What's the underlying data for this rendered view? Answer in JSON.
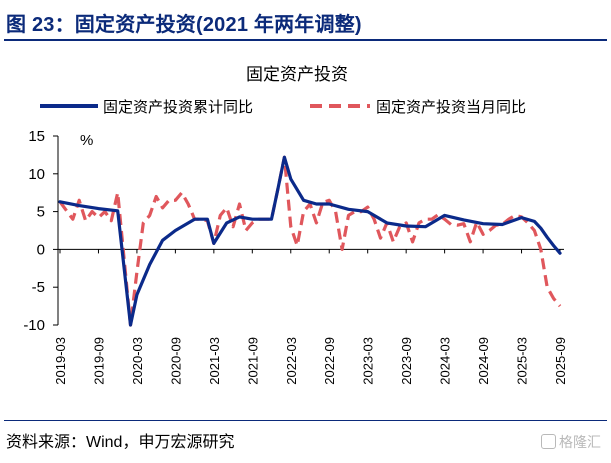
{
  "header": {
    "figure_title": "图 23：固定资产投资(2021 年两年调整)"
  },
  "footer": {
    "source": "资料来源：Wind，申万宏源研究",
    "watermark": "格隆汇"
  },
  "chart_data": {
    "type": "line",
    "title": "固定资产投资",
    "ylabel": "%",
    "ylim": [
      -10,
      15
    ],
    "yticks": [
      15,
      10,
      5,
      0,
      -5,
      -10
    ],
    "x_labels": [
      "2019-03",
      "2019-09",
      "2020-03",
      "2020-09",
      "2021-03",
      "2021-09",
      "2022-03",
      "2022-09",
      "2023-03",
      "2023-09",
      "2024-03",
      "2024-09",
      "2025-03",
      "2025-09"
    ],
    "x_start": "2019-03",
    "x_end": "2025-09",
    "legend_position": "top",
    "colors": {
      "cumulative": "#0b2a8a",
      "monthly": "#e0575c"
    },
    "series": [
      {
        "name": "固定资产投资累计同比",
        "style": "solid",
        "x": [
          "2019-03",
          "2019-06",
          "2019-09",
          "2019-12",
          "2020-02",
          "2020-03",
          "2020-05",
          "2020-07",
          "2020-09",
          "2020-12",
          "2021-02",
          "2021-03",
          "2021-05",
          "2021-07",
          "2021-09",
          "2021-12",
          "2022-01",
          "2022-02",
          "2022-03",
          "2022-05",
          "2022-07",
          "2022-09",
          "2022-12",
          "2023-03",
          "2023-06",
          "2023-09",
          "2023-12",
          "2024-03",
          "2024-06",
          "2024-09",
          "2024-12",
          "2025-03",
          "2025-05",
          "2025-06",
          "2025-07",
          "2025-08",
          "2025-09"
        ],
        "y": [
          6.3,
          5.8,
          5.4,
          5.1,
          -10,
          -6,
          -2,
          1.2,
          2.5,
          4,
          4,
          0.8,
          3.5,
          4.3,
          4,
          4,
          8,
          12.2,
          9.3,
          6.5,
          6,
          6,
          5.3,
          5,
          3.5,
          3.1,
          3,
          4.5,
          3.9,
          3.4,
          3.3,
          4.2,
          3.7,
          2.8,
          1.6,
          0.5,
          -0.5
        ]
      },
      {
        "name": "固定资产投资当月同比",
        "style": "dashed",
        "x": [
          "2019-03",
          "2019-05",
          "2019-06",
          "2019-07",
          "2019-08",
          "2019-09",
          "2019-10",
          "2019-11",
          "2019-12",
          "2020-02",
          "2020-03",
          "2020-04",
          "2020-05",
          "2020-06",
          "2020-07",
          "2020-08",
          "2020-09",
          "2020-10",
          "2020-11",
          "2020-12",
          "2021-01",
          "2021-02",
          "2021-03",
          "2021-04",
          "2021-05",
          "2021-06",
          "2021-07",
          "2021-08",
          "2021-09",
          "2021-10",
          "2021-11",
          "2021-12",
          "2022-01",
          "2022-02",
          "2022-03",
          "2022-04",
          "2022-05",
          "2022-06",
          "2022-07",
          "2022-08",
          "2022-09",
          "2022-10",
          "2022-11",
          "2022-12",
          "2023-01",
          "2023-02",
          "2023-03",
          "2023-04",
          "2023-05",
          "2023-06",
          "2023-07",
          "2023-08",
          "2023-09",
          "2023-10",
          "2023-11",
          "2023-12",
          "2024-01",
          "2024-02",
          "2024-03",
          "2024-04",
          "2024-05",
          "2024-06",
          "2024-07",
          "2024-08",
          "2024-09",
          "2024-10",
          "2024-11",
          "2024-12",
          "2025-01",
          "2025-02",
          "2025-03",
          "2025-04",
          "2025-05",
          "2025-06",
          "2025-07",
          "2025-08",
          "2025-09"
        ],
        "y": [
          6.3,
          4,
          6.5,
          3.8,
          5,
          4.2,
          5,
          3.8,
          7.5,
          -10,
          -3,
          3.5,
          4.5,
          7,
          5.5,
          6.5,
          6.5,
          7.5,
          6,
          4,
          4,
          3.8,
          0.8,
          4.5,
          5.5,
          3,
          6,
          2.5,
          3.5,
          4,
          4,
          4,
          8,
          12.2,
          3,
          0.5,
          5,
          6,
          3.5,
          6.2,
          6.5,
          5,
          0,
          4.5,
          5,
          5,
          5.6,
          4,
          1.5,
          3.5,
          1,
          3,
          3.5,
          1,
          3.5,
          4,
          4,
          4.6,
          4,
          3.3,
          3.2,
          3.4,
          1,
          3.6,
          2,
          2.5,
          3.2,
          3.3,
          4,
          4.5,
          4.3,
          3.5,
          2.5,
          0,
          -5,
          -6.5,
          -7.5
        ]
      }
    ]
  }
}
